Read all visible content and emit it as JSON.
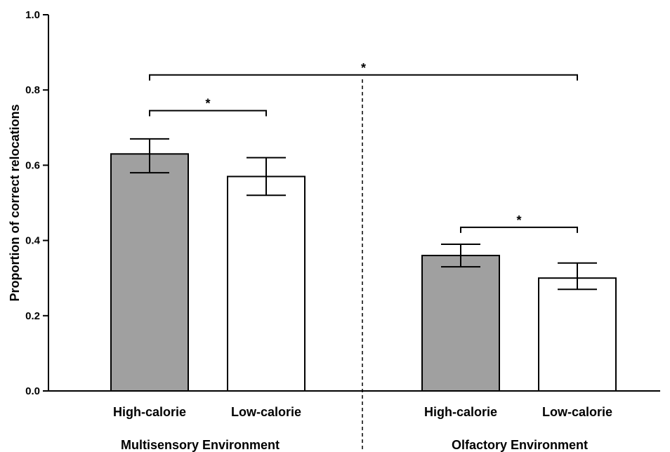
{
  "chart_data": {
    "type": "bar",
    "title": "",
    "xlabel": "",
    "ylabel": "Proportion of correct relocations",
    "ylim": [
      0,
      1.0
    ],
    "yticks": [
      "0.0",
      "0.2",
      "0.4",
      "0.6",
      "0.8",
      "1.0"
    ],
    "grid": false,
    "groups": [
      {
        "name": "Multisensory Environment",
        "bars": [
          {
            "category": "High-calorie",
            "value": 0.63,
            "error_low": 0.58,
            "error_high": 0.67,
            "fill": "#a0a0a0"
          },
          {
            "category": "Low-calorie",
            "value": 0.57,
            "error_low": 0.52,
            "error_high": 0.62,
            "fill": "#ffffff"
          }
        ]
      },
      {
        "name": "Olfactory Environment",
        "bars": [
          {
            "category": "High-calorie",
            "value": 0.36,
            "error_low": 0.33,
            "error_high": 0.39,
            "fill": "#a0a0a0"
          },
          {
            "category": "Low-calorie",
            "value": 0.3,
            "error_low": 0.27,
            "error_high": 0.34,
            "fill": "#ffffff"
          }
        ]
      }
    ],
    "significance": [
      {
        "label": "*",
        "from": [
          0,
          0
        ],
        "to": [
          0,
          1
        ],
        "y": 0.745
      },
      {
        "label": "*",
        "from": [
          1,
          0
        ],
        "to": [
          1,
          1
        ],
        "y": 0.435
      },
      {
        "label": "*",
        "from": [
          0,
          0
        ],
        "to": [
          1,
          1
        ],
        "y": 0.84
      }
    ]
  }
}
